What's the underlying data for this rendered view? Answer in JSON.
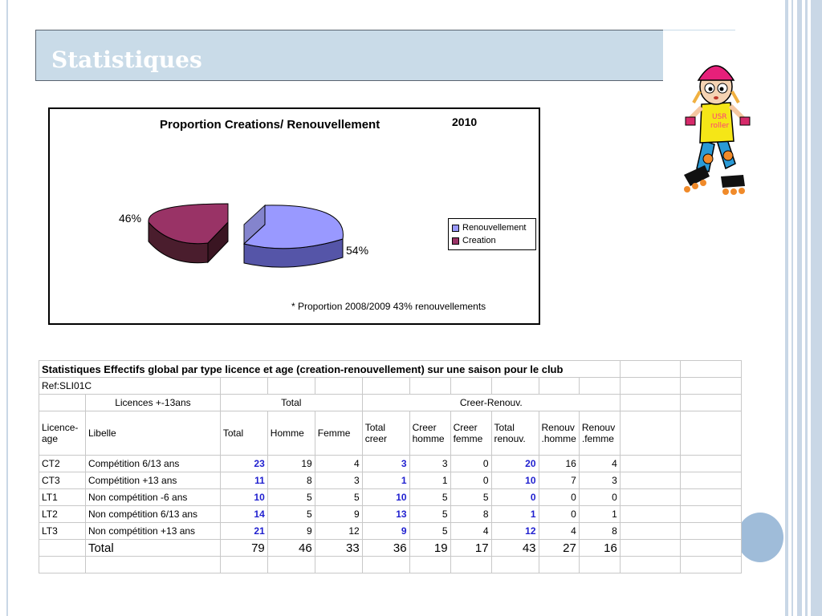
{
  "slide": {
    "title": "Statistiques",
    "accent_colors": {
      "title_bar": "#c9dbe8",
      "circle": "#9fbcd9"
    }
  },
  "mascot": {
    "shirt_text": [
      "USR",
      "roller"
    ]
  },
  "chart_data": {
    "type": "pie",
    "title": "Proportion Creations/ Renouvellement",
    "subtitle": "2010",
    "series": [
      {
        "name": "Renouvellement",
        "value": 54,
        "label": "54%",
        "color": "#9999ff"
      },
      {
        "name": "Creation",
        "value": 46,
        "label": "46%",
        "color": "#993366"
      }
    ],
    "legend_position": "right",
    "annotation": "*  Proportion 2008/2009 43% renouvellements"
  },
  "table": {
    "title": "Statistiques Effectifs global par type licence et age (creation-renouvellement) sur une saison pour le club",
    "ref": "Ref:SLI01C",
    "group_headers": {
      "licences": "Licences +-13ans",
      "total": "Total",
      "creer_renouv": "Creer-Renouv."
    },
    "columns": [
      "Licence-\nage",
      "Libelle",
      "Total",
      "Homme",
      "Femme",
      "Total\ncreer",
      "Creer\nhomme",
      "Creer\nfemme",
      "Total\nrenouv.",
      "Renouv\n.homme",
      "Renouv\n.femme"
    ],
    "rows": [
      [
        "CT2",
        "Compétition 6/13 ans",
        "23",
        "19",
        "4",
        "3",
        "3",
        "0",
        "20",
        "16",
        "4"
      ],
      [
        "CT3",
        "Compétition +13 ans",
        "11",
        "8",
        "3",
        "1",
        "1",
        "0",
        "10",
        "7",
        "3"
      ],
      [
        "LT1",
        "Non compétition -6 ans",
        "10",
        "5",
        "5",
        "10",
        "5",
        "5",
        "0",
        "0",
        "0"
      ],
      [
        "LT2",
        "Non compétition 6/13 ans",
        "14",
        "5",
        "9",
        "13",
        "5",
        "8",
        "1",
        "0",
        "1"
      ],
      [
        "LT3",
        "Non compétition +13 ans",
        "21",
        "9",
        "12",
        "9",
        "5",
        "4",
        "12",
        "4",
        "8"
      ]
    ],
    "total_row": [
      "",
      "Total",
      "79",
      "46",
      "33",
      "36",
      "19",
      "17",
      "43",
      "27",
      "16"
    ]
  }
}
